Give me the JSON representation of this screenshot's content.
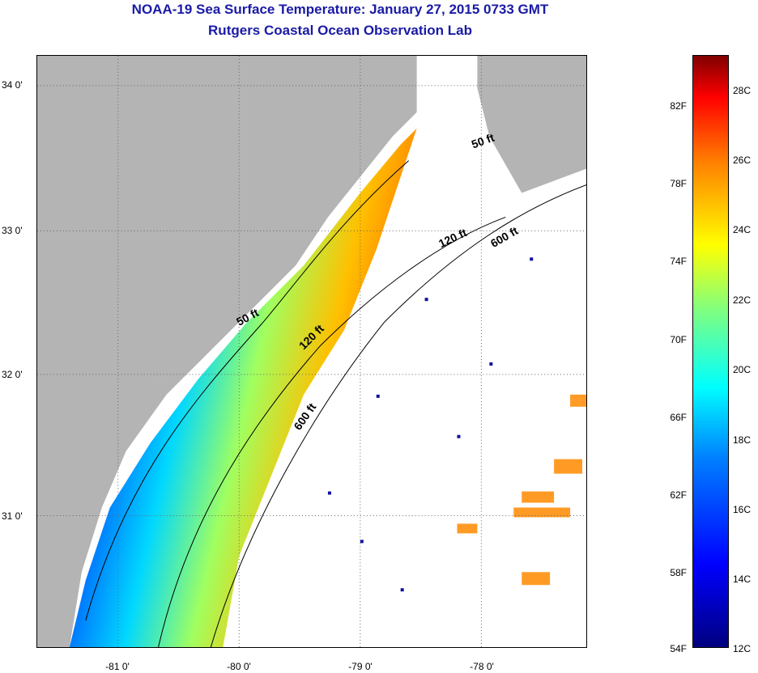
{
  "title": {
    "line1": "NOAA-19 Sea Surface Temperature:  January 27, 2015 0733 GMT",
    "line2": "Rutgers Coastal Ocean Observation Lab"
  },
  "map": {
    "x_ticks": [
      "-81 0'",
      "-80 0'",
      "-79 0'",
      "-78 0'"
    ],
    "y_ticks": [
      "34 0'",
      "33 0'",
      "32 0'",
      "31 0'"
    ],
    "contours": [
      "50 ft",
      "120 ft",
      "600 ft",
      "50 ft",
      "120 ft",
      "600 ft"
    ],
    "colors": {
      "land": "#b4b4b4",
      "cloud": "#ffffff",
      "cold": "#0000cc",
      "warm": "#ff8000"
    }
  },
  "colorbar": {
    "fahrenheit": [
      "82F",
      "78F",
      "74F",
      "70F",
      "66F",
      "62F",
      "58F",
      "54F"
    ],
    "celsius": [
      "28C",
      "26C",
      "24C",
      "22C",
      "20C",
      "18C",
      "16C",
      "14C",
      "12C"
    ],
    "range_c": [
      12,
      29
    ]
  }
}
